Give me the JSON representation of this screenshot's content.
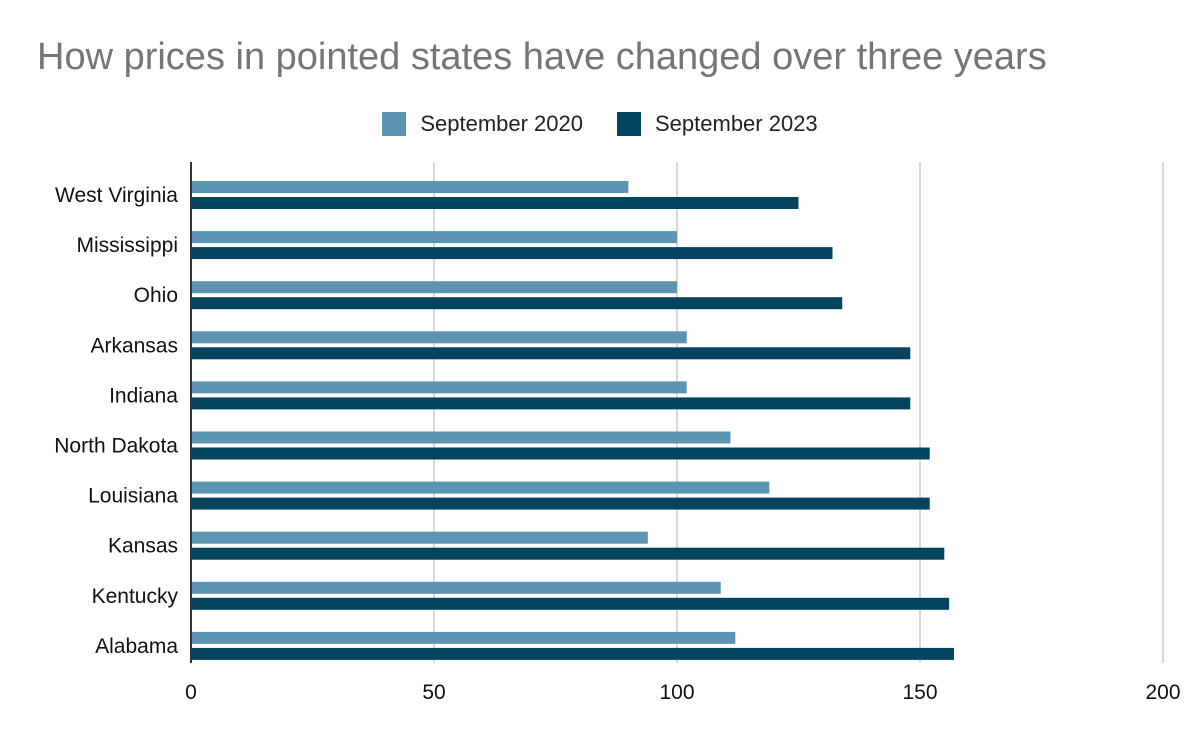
{
  "chart_data": {
    "type": "bar",
    "orientation": "horizontal",
    "title": "How prices in pointed states have changed over three years",
    "xlabel": "",
    "ylabel": "",
    "xlim": [
      0,
      200
    ],
    "xticks": [
      0,
      50,
      100,
      150,
      200
    ],
    "grid": true,
    "legend_position": "top",
    "categories": [
      "West Virginia",
      "Mississippi",
      "Ohio",
      "Arkansas",
      "Indiana",
      "North Dakota",
      "Louisiana",
      "Kansas",
      "Kentucky",
      "Alabama"
    ],
    "series": [
      {
        "name": "September 2020",
        "color": "#5b95b3",
        "values": [
          90,
          100,
          100,
          102,
          102,
          111,
          119,
          94,
          109,
          112
        ]
      },
      {
        "name": "September 2023",
        "color": "#05445e",
        "values": [
          125,
          132,
          134,
          148,
          148,
          152,
          152,
          155,
          156,
          157
        ]
      }
    ]
  }
}
